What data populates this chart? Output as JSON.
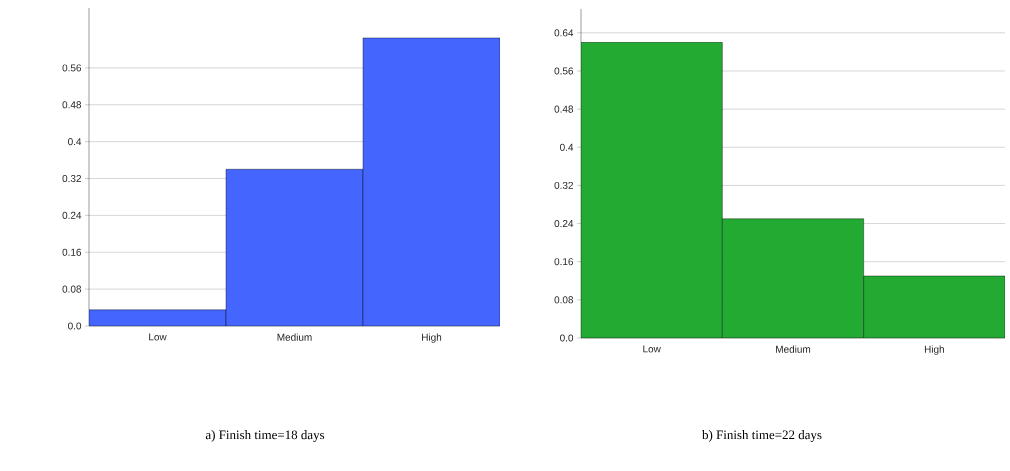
{
  "chart_data": [
    {
      "type": "bar",
      "categories": [
        "Low",
        "Medium",
        "High"
      ],
      "values": [
        0.035,
        0.34,
        0.625
      ],
      "color": "#4466ff",
      "ylim": [
        0,
        0.69
      ],
      "yticks": [
        {
          "value": 0,
          "label": "0.0"
        },
        0.08,
        0.16,
        0.24,
        0.32,
        0.4,
        0.48,
        0.56
      ],
      "grid": "y",
      "annotations": [
        "a) Finish time=18 days"
      ]
    },
    {
      "type": "bar",
      "categories": [
        "Low",
        "Medium",
        "High"
      ],
      "values": [
        0.62,
        0.25,
        0.13
      ],
      "color": "#22aa33",
      "ylim": [
        0,
        0.69
      ],
      "yticks": [
        {
          "value": 0,
          "label": "0.0"
        },
        0.08,
        0.16,
        0.24,
        0.32,
        0.4,
        0.48,
        0.56,
        0.64
      ],
      "grid": "y",
      "annotations": [
        "b) Finish time=22 days"
      ]
    }
  ]
}
